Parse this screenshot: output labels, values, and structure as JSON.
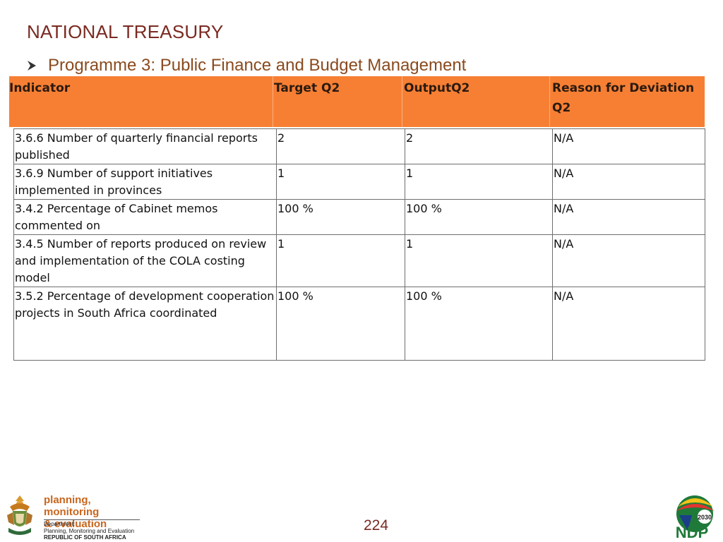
{
  "slide": {
    "title": "NATIONAL TREASURY",
    "subtitle": "Programme 3: Public Finance and Budget Management",
    "page_number": "224"
  },
  "table": {
    "headers": [
      "Indicator",
      "Target Q2",
      "OutputQ2",
      "Reason for Deviation Q2"
    ],
    "rows": [
      [
        "3.6.6 Number of quarterly financial reports published",
        "2",
        "2",
        "N/A"
      ],
      [
        "3.6.9 Number of support initiatives implemented in provinces",
        "1",
        "1",
        "N/A"
      ],
      [
        "3.4.2 Percentage of Cabinet memos commented on",
        "100 %",
        "100 %",
        "N/A"
      ],
      [
        "3.4.5 Number of reports produced on review and implementation of the COLA costing model",
        "1",
        "1",
        "N/A"
      ],
      [
        "3.5.2 Percentage of development cooperation projects in South Africa coordinated",
        "100 %",
        "100 %",
        "N/A"
      ]
    ]
  },
  "footer": {
    "pme_line1": "planning, monitoring",
    "pme_line2": "& evaluation",
    "dept_label": "Department:",
    "dept_name": "Planning, Monitoring and Evaluation",
    "country": "REPUBLIC OF SOUTH AFRICA",
    "ndp_text": "NDP",
    "ndp_year": "2030"
  },
  "colors": {
    "title": "#7a2a22",
    "subtitle": "#8a4a1e",
    "header_bg": "#f77f33"
  },
  "icons": {
    "bullet": "arrow-bullet-icon",
    "left_logo": "coat-of-arms-icon",
    "right_logo": "ndp-logo-icon"
  }
}
